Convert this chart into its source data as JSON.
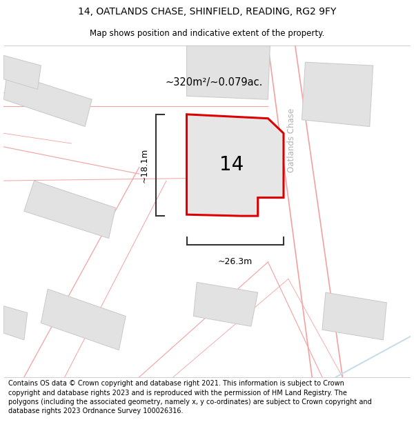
{
  "title_line1": "14, OATLANDS CHASE, SHINFIELD, READING, RG2 9FY",
  "title_line2": "Map shows position and indicative extent of the property.",
  "footer_text": "Contains OS data © Crown copyright and database right 2021. This information is subject to Crown copyright and database rights 2023 and is reproduced with the permission of HM Land Registry. The polygons (including the associated geometry, namely x, y co-ordinates) are subject to Crown copyright and database rights 2023 Ordnance Survey 100026316.",
  "map_bg": "#f7f7f7",
  "plot_color": "#dd0000",
  "plot_fill": "#e8e8e8",
  "building_fill": "#e2e2e2",
  "building_edge": "#cccccc",
  "road_line_color": "#f5a0a0",
  "road_line_color2": "#d4b8b8",
  "water_color": "#c8dde8",
  "number_label": "14",
  "area_label": "~320m²/~0.079ac.",
  "width_label": "~26.3m",
  "height_label": "~18.1m",
  "road_label": "Oatlands Chase",
  "road_label_color": "#b0b0b0",
  "dim_line_color": "#333333",
  "title_fontsize": 10,
  "subtitle_fontsize": 8.5,
  "footer_fontsize": 7.0,
  "number_fontsize": 20,
  "area_fontsize": 10.5,
  "dim_fontsize": 9,
  "road_fontsize": 8.5
}
